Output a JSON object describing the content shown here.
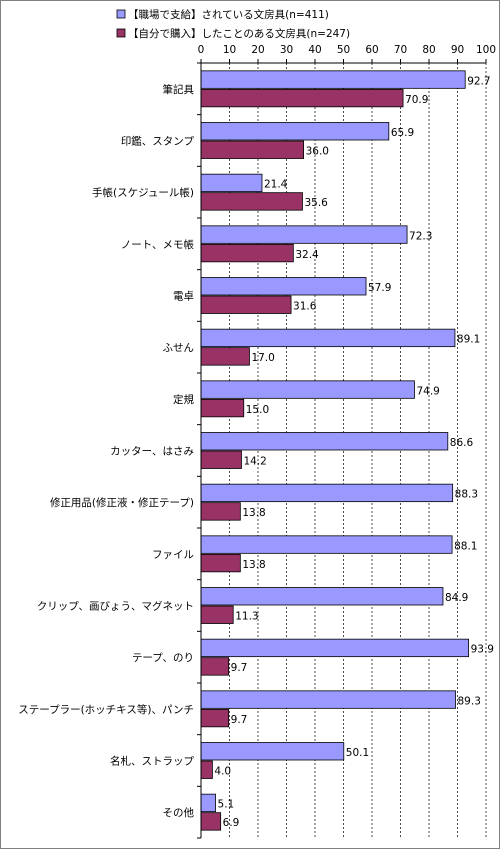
{
  "colors": {
    "series1_fill": "#9999FF",
    "series2_fill": "#993366",
    "bar_stroke": "#000000",
    "grid": "#000000",
    "border": "#808080"
  },
  "chart_data": {
    "type": "bar",
    "orientation": "horizontal",
    "title": "",
    "xlabel": "",
    "ylabel": "",
    "xlim": [
      0,
      100
    ],
    "x_ticks": [
      "0",
      "10",
      "20",
      "30",
      "40",
      "50",
      "60",
      "70",
      "80",
      "90",
      "100"
    ],
    "grid": "vertical dashed",
    "legend_position": "top-left",
    "categories": [
      "筆記具",
      "印鑑、スタンプ",
      "手帳(スケジュール帳)",
      "ノート、メモ帳",
      "電卓",
      "ふせん",
      "定規",
      "カッター、はさみ",
      "修正用品(修正液・修正テープ)",
      "ファイル",
      "クリップ、画びょう、マグネット",
      "テープ、のり",
      "ステープラー(ホッチキス等)、パンチ",
      "名札、ストラップ",
      "その他"
    ],
    "series": [
      {
        "name": "【職場で支給】されている文房具(n=411)",
        "values": [
          92.7,
          65.9,
          21.4,
          72.3,
          57.9,
          89.1,
          74.9,
          86.6,
          88.3,
          88.1,
          84.9,
          93.9,
          89.3,
          50.1,
          5.1
        ],
        "labels": [
          "92.7",
          "65.9",
          "21.4",
          "72.3",
          "57.9",
          "89.1",
          "74.9",
          "86.6",
          "88.3",
          "88.1",
          "84.9",
          "93.9",
          "89.3",
          "50.1",
          "5.1"
        ]
      },
      {
        "name": "【自分で購入】したことのある文房具(n=247)",
        "values": [
          70.9,
          36.0,
          35.6,
          32.4,
          31.6,
          17.0,
          15.0,
          14.2,
          13.8,
          13.8,
          11.3,
          9.7,
          9.7,
          4.0,
          6.9
        ],
        "labels": [
          "70.9",
          "36.0",
          "35.6",
          "32.4",
          "31.6",
          "17.0",
          "15.0",
          "14.2",
          "13.8",
          "13.8",
          "11.3",
          "9.7",
          "9.7",
          "4.0",
          "6.9"
        ]
      }
    ]
  }
}
